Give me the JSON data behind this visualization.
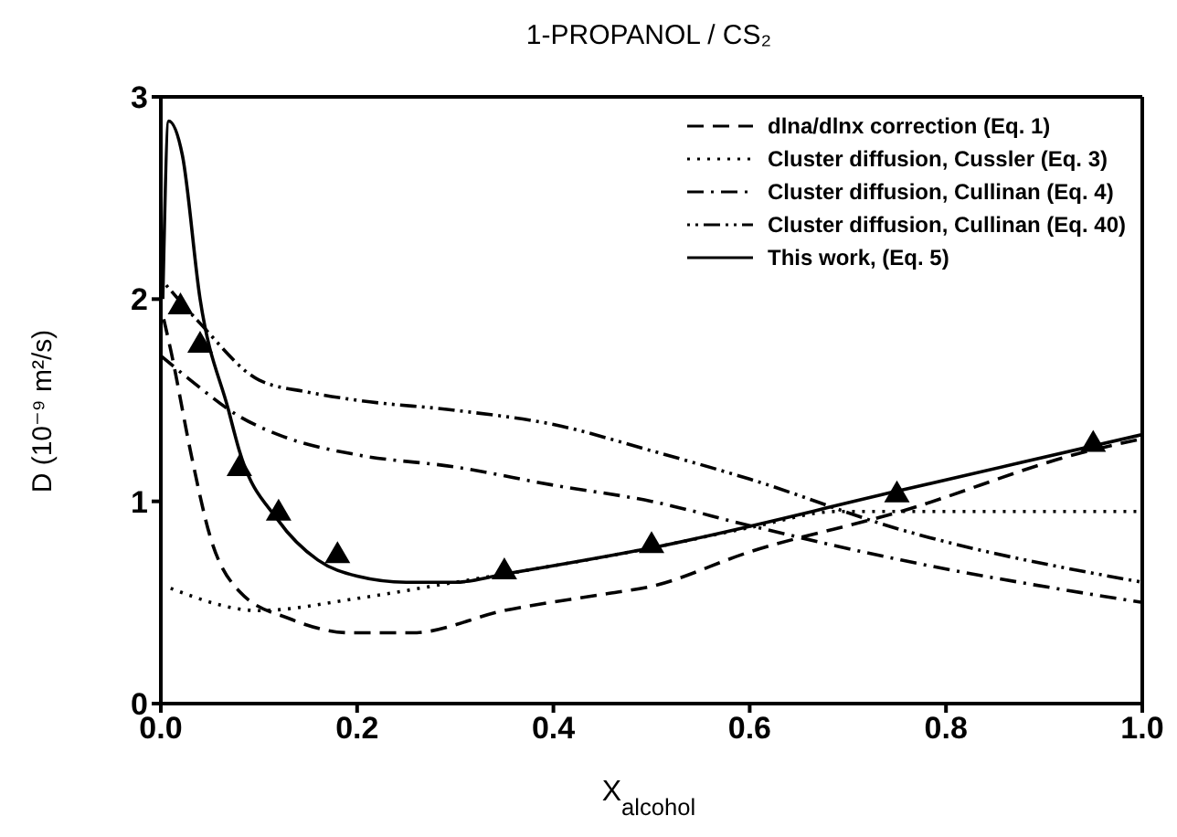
{
  "chart_data": {
    "type": "line",
    "title": "1-PROPANOL / CS₂",
    "xlabel": "X$_{alcohol}$",
    "ylabel": "D  (10⁻⁹ m²/s)",
    "xlim": [
      0,
      1
    ],
    "ylim": [
      0,
      3
    ],
    "xticks": [
      {
        "value": 0,
        "label": "0.0"
      },
      0.2,
      0.4,
      0.6,
      0.8,
      {
        "value": 1,
        "label": "1.0"
      }
    ],
    "yticks": [
      0,
      1,
      2,
      3
    ],
    "grid": false,
    "legend": "top right",
    "series": [
      {
        "name": "dlna/dlnx correction (Eq. 1)",
        "color": "#000000",
        "line_style": "dashed",
        "x": [
          0.003,
          0.01,
          0.031,
          0.05,
          0.081,
          0.131,
          0.194,
          0.256,
          0.35,
          0.45,
          0.5,
          0.6,
          0.754,
          0.938,
          1.0
        ],
        "values": [
          1.9,
          1.75,
          1.23,
          0.83,
          0.55,
          0.42,
          0.35,
          0.35,
          0.46,
          0.54,
          0.58,
          0.75,
          0.95,
          1.24,
          1.31
        ]
      },
      {
        "name": "Cluster diffusion, Cussler (Eq. 3)",
        "color": "#000000",
        "line_style": "dotted",
        "x": [
          0.01,
          0.1,
          0.2,
          0.3,
          0.35,
          0.5,
          0.6,
          0.69,
          0.8,
          1.0
        ],
        "values": [
          0.57,
          0.46,
          0.52,
          0.6,
          0.64,
          0.77,
          0.87,
          0.95,
          0.95,
          0.95
        ]
      },
      {
        "name": "Cluster diffusion, Cullinan (Eq. 4)",
        "color": "#000000",
        "line_style": "dashdot",
        "x": [
          0.0,
          0.03,
          0.08,
          0.125,
          0.2,
          0.3,
          0.4,
          0.5,
          0.6,
          0.754,
          1.0
        ],
        "values": [
          1.72,
          1.6,
          1.42,
          1.32,
          1.23,
          1.17,
          1.08,
          1.0,
          0.88,
          0.71,
          0.5
        ]
      },
      {
        "name": "Cluster diffusion, Cullinan (Eq. 40)",
        "color": "#000000",
        "line_style": "dashdotdot",
        "x": [
          0.0,
          0.04,
          0.1,
          0.15,
          0.2,
          0.3,
          0.4,
          0.5,
          0.6,
          0.754,
          1.0
        ],
        "values": [
          2.1,
          1.88,
          1.6,
          1.54,
          1.5,
          1.45,
          1.38,
          1.25,
          1.11,
          0.86,
          0.6
        ]
      },
      {
        "name": "This work, (Eq. 5)",
        "color": "#000000",
        "line_style": "solid",
        "x": [
          0.002,
          0.008,
          0.022,
          0.04,
          0.069,
          0.08,
          0.119,
          0.16,
          0.2,
          0.25,
          0.3,
          0.35,
          0.5,
          0.75,
          1.0
        ],
        "values": [
          2.0,
          2.88,
          2.71,
          2.0,
          1.45,
          1.25,
          0.91,
          0.71,
          0.63,
          0.6,
          0.6,
          0.64,
          0.77,
          1.05,
          1.33
        ]
      },
      {
        "type": "scatter",
        "color": "#000000",
        "marker": "triangle",
        "x": [
          0.02,
          0.04,
          0.08,
          0.12,
          0.18,
          0.35,
          0.5,
          0.75,
          0.95
        ],
        "values": [
          1.97,
          1.78,
          1.17,
          0.95,
          0.74,
          0.66,
          0.79,
          1.04,
          1.29
        ]
      }
    ]
  }
}
